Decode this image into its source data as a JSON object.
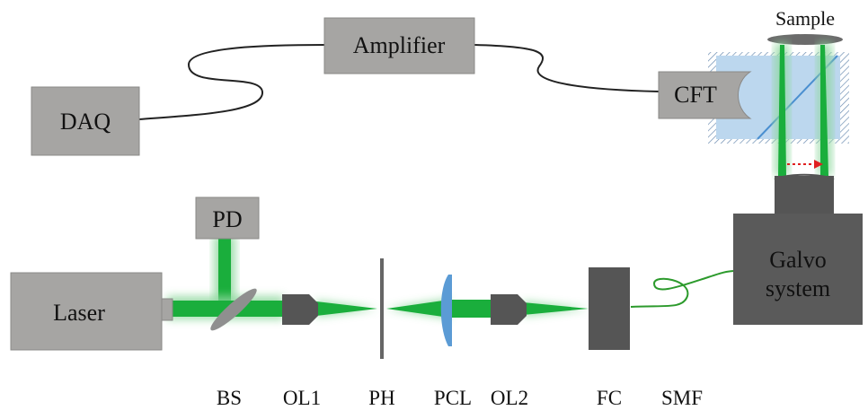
{
  "colors": {
    "box": "#a6a5a3",
    "box_stroke": "#8a8987",
    "dark": "#555555",
    "beam": "#1aae3c",
    "beam_glow": "#8fd89e",
    "chamber": "#bcd7ee",
    "splitter": "#4a8fd0",
    "lens": "#5b9bd5",
    "arrow": "#e02020",
    "fiber": "#222222",
    "green_fiber": "#2c9a2c"
  },
  "boxes": {
    "daq": "DAQ",
    "amplifier": "Amplifier",
    "cft": "CFT",
    "pd": "PD",
    "laser": "Laser",
    "galvo_line1": "Galvo",
    "galvo_line2": "system",
    "sample": "Sample"
  },
  "components": {
    "bs": "BS",
    "ol1": "OL1",
    "ph": "PH",
    "pcl": "PCL",
    "ol2": "OL2",
    "fc": "FC",
    "smf": "SMF"
  }
}
